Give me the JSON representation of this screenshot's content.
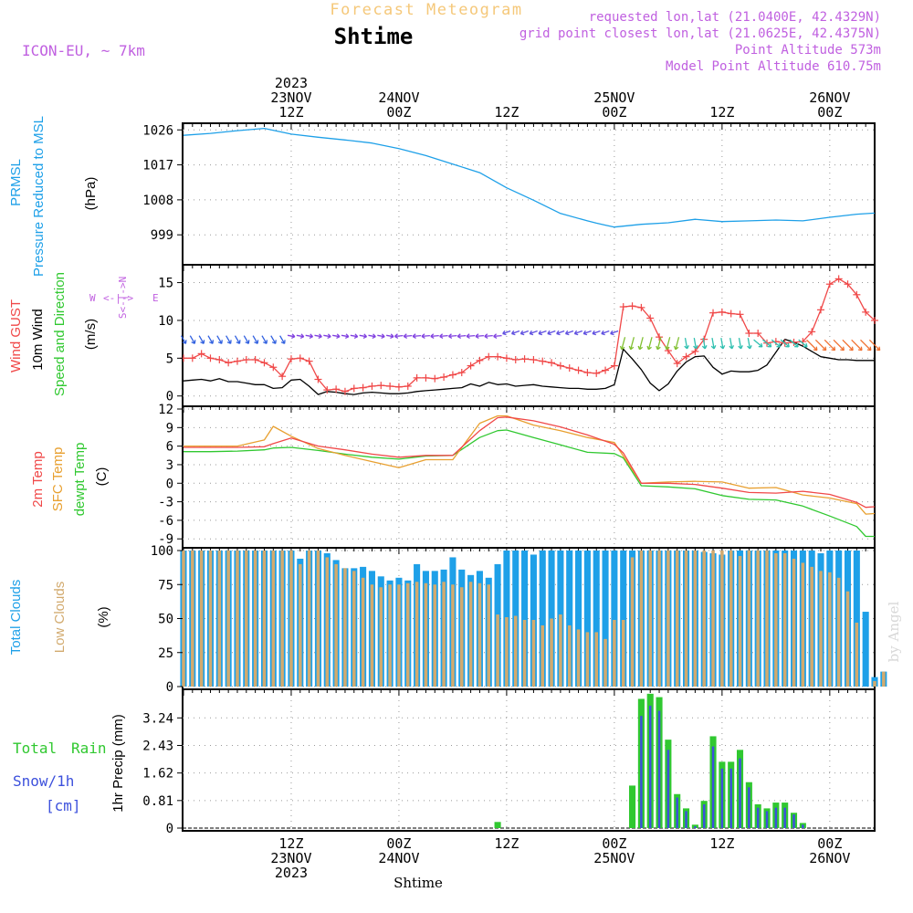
{
  "header": {
    "super_title": "Forecast Meteogram",
    "location": "Shtime",
    "model": "ICON-EU, ~ 7km",
    "requested": "requested lon,lat (21.0400E, 42.4329N)",
    "grid_point": "grid point closest lon,lat (21.0625E, 42.4375N)",
    "point_alt": "Point Altitude 573m",
    "model_alt": "Model Point Altitude 610.75m"
  },
  "time_axis": {
    "top_labels": [
      {
        "t": 12,
        "lines": [
          "2023",
          "23NOV",
          "12Z"
        ]
      },
      {
        "t": 24,
        "lines": [
          "24NOV",
          "00Z"
        ]
      },
      {
        "t": 36,
        "lines": [
          "12Z"
        ]
      },
      {
        "t": 48,
        "lines": [
          "25NOV",
          "00Z"
        ]
      },
      {
        "t": 60,
        "lines": [
          "12Z"
        ]
      },
      {
        "t": 72,
        "lines": [
          "26NOV",
          "00Z"
        ]
      }
    ],
    "bottom_labels": [
      {
        "t": 12,
        "lines": [
          "12Z",
          "23NOV",
          "2023"
        ]
      },
      {
        "t": 24,
        "lines": [
          "00Z",
          "24NOV"
        ]
      },
      {
        "t": 36,
        "lines": [
          "12Z"
        ]
      },
      {
        "t": 48,
        "lines": [
          "00Z",
          "25NOV"
        ]
      },
      {
        "t": 60,
        "lines": [
          "12Z"
        ]
      },
      {
        "t": 72,
        "lines": [
          "00Z",
          "26NOV"
        ]
      }
    ],
    "footer": "Shtime",
    "credit": "by Angel"
  },
  "panel_labels": {
    "p1": [
      "PRMSL",
      "Pressure Reduced to MSL",
      "(hPa)"
    ],
    "p2": [
      "Wind GUST",
      "10m Wind",
      "Speed and Direction",
      "(m/s)"
    ],
    "compass": {
      "n": "N",
      "s": "S",
      "w": "W",
      "e": "E",
      "arrows": "<-|->"
    },
    "p3": [
      "2m Temp",
      "SFC Temp",
      "dewpt Temp",
      "(C)"
    ],
    "p4": [
      "Total Clouds",
      "Low Clouds",
      "(%)"
    ],
    "p5": [
      "Total",
      "Rain",
      "Snow/1h",
      "[cm]",
      "1hr Precip (mm)"
    ]
  },
  "colors": {
    "pressure": "#1ea0e8",
    "gust": "#f04848",
    "wind": "#000000",
    "temp2m": "#f04848",
    "sfc": "#e8a030",
    "dewpt": "#30c830",
    "cloud_total": "#1ea0e8",
    "cloud_low": "#d2aa6e",
    "rain": "#30c830",
    "snow": "#3c50dc",
    "header": "#c060e0",
    "title_orange": "#f5c87a"
  },
  "chart_data": [
    {
      "type": "line",
      "title": "PRMSL",
      "ylabel": "(hPa)",
      "yticks": [
        999,
        1008,
        1017,
        1026
      ],
      "ylim": [
        992,
        1027
      ],
      "x": [
        0,
        3,
        6,
        9,
        12,
        15,
        18,
        21,
        24,
        27,
        30,
        33,
        36,
        39,
        42,
        45,
        46,
        47,
        48,
        51,
        54,
        57,
        60,
        63,
        66,
        69,
        72,
        75,
        77
      ],
      "series": [
        {
          "name": "PRMSL",
          "values": [
            1024.6,
            1025.1,
            1025.8,
            1026.4,
            1024.9,
            1024.1,
            1023.4,
            1022.6,
            1021.2,
            1019.4,
            1017.2,
            1015.0,
            1011.1,
            1007.9,
            1004.5,
            1002.6,
            1002.0,
            1001.5,
            1001.0,
            1001.7,
            1002.1,
            1003.0,
            1002.4,
            1002.6,
            1002.8,
            1002.6,
            1003.5,
            1004.3,
            1004.6
          ]
        }
      ]
    },
    {
      "type": "line",
      "title": "Wind",
      "ylabel": "(m/s)",
      "yticks": [
        0,
        5,
        10,
        15
      ],
      "ylim": [
        -1,
        17
      ],
      "x": [
        0,
        1,
        2,
        3,
        4,
        5,
        6,
        7,
        8,
        9,
        10,
        11,
        12,
        13,
        14,
        15,
        16,
        17,
        18,
        19,
        20,
        21,
        22,
        23,
        24,
        25,
        26,
        27,
        28,
        29,
        30,
        31,
        32,
        33,
        34,
        35,
        36,
        37,
        38,
        39,
        40,
        41,
        42,
        43,
        44,
        45,
        46,
        47,
        48,
        49,
        50,
        51,
        52,
        53,
        54,
        55,
        56,
        57,
        58,
        59,
        60,
        61,
        62,
        63,
        64,
        65,
        66,
        67,
        68,
        69,
        70,
        71,
        72,
        73,
        74,
        75,
        76,
        77
      ],
      "series": [
        {
          "name": "Wind GUST",
          "values": [
            5.0,
            5.0,
            5.6,
            5.0,
            4.8,
            4.4,
            4.6,
            4.8,
            4.8,
            4.4,
            3.8,
            2.6,
            4.9,
            5.0,
            4.6,
            2.2,
            0.8,
            0.9,
            0.6,
            1.0,
            1.1,
            1.3,
            1.4,
            1.3,
            1.2,
            1.3,
            2.4,
            2.4,
            2.3,
            2.5,
            2.8,
            3.1,
            4.0,
            4.7,
            5.2,
            5.2,
            5.0,
            4.8,
            4.9,
            4.8,
            4.6,
            4.4,
            4.0,
            3.7,
            3.4,
            3.1,
            3.0,
            3.4,
            4.0,
            11.8,
            11.9,
            11.7,
            10.3,
            7.8,
            6.0,
            4.3,
            5.2,
            5.9,
            7.5,
            11.0,
            11.1,
            10.9,
            10.8,
            8.3,
            8.3,
            7.0,
            7.2,
            7.0,
            7.1,
            7.2,
            8.5,
            11.4,
            14.8,
            15.5,
            14.8,
            13.4,
            11.1,
            10.0
          ]
        },
        {
          "name": "10m Wind",
          "values": [
            2.0,
            2.1,
            2.2,
            2.0,
            2.3,
            1.9,
            1.9,
            1.7,
            1.5,
            1.5,
            1.0,
            1.1,
            2.1,
            2.2,
            1.3,
            0.2,
            0.6,
            0.5,
            0.3,
            0.2,
            0.4,
            0.5,
            0.4,
            0.3,
            0.3,
            0.4,
            0.6,
            0.7,
            0.8,
            0.9,
            1.0,
            1.1,
            1.6,
            1.3,
            1.8,
            1.5,
            1.6,
            1.3,
            1.4,
            1.5,
            1.3,
            1.2,
            1.1,
            1.0,
            1.0,
            0.9,
            0.9,
            1.0,
            1.5,
            6.2,
            4.9,
            3.5,
            1.7,
            0.7,
            1.6,
            3.3,
            4.5,
            5.2,
            5.3,
            3.8,
            2.9,
            3.3,
            3.2,
            3.2,
            3.4,
            4.1,
            5.8,
            7.5,
            7.1,
            6.6,
            5.9,
            5.2,
            5.0,
            4.8,
            4.8,
            4.7,
            4.7,
            4.7
          ]
        }
      ]
    },
    {
      "type": "line",
      "title": "Temperature",
      "ylabel": "(C)",
      "yticks": [
        -9,
        -6,
        -3,
        0,
        3,
        6,
        9,
        12
      ],
      "ylim": [
        -10,
        12
      ],
      "x": [
        0,
        3,
        6,
        9,
        10,
        12,
        15,
        18,
        21,
        24,
        27,
        30,
        33,
        35,
        36,
        39,
        42,
        45,
        48,
        49,
        51,
        54,
        57,
        60,
        63,
        66,
        69,
        72,
        75,
        76,
        77
      ],
      "series": [
        {
          "name": "2m Temp",
          "values": [
            5.8,
            5.8,
            5.8,
            5.9,
            6.4,
            7.3,
            6.0,
            5.4,
            4.7,
            4.2,
            4.5,
            4.5,
            8.5,
            10.6,
            10.7,
            10.1,
            9.1,
            7.8,
            6.3,
            4.9,
            0.0,
            0.0,
            -0.2,
            -0.8,
            -1.5,
            -1.6,
            -1.3,
            -1.8,
            -3.1,
            -3.9,
            -3.8
          ]
        },
        {
          "name": "SFC Temp",
          "values": [
            6.0,
            6.0,
            6.0,
            7.0,
            9.2,
            7.6,
            5.6,
            4.5,
            3.5,
            2.5,
            3.8,
            3.8,
            9.7,
            10.9,
            10.9,
            9.4,
            8.5,
            7.4,
            6.6,
            4.4,
            0.0,
            0.2,
            0.3,
            0.2,
            -0.8,
            -0.7,
            -1.9,
            -2.4,
            -3.3,
            -5.0,
            -4.9
          ]
        },
        {
          "name": "dewpt Temp",
          "values": [
            5.1,
            5.1,
            5.2,
            5.4,
            5.7,
            5.8,
            5.3,
            4.7,
            4.2,
            3.9,
            4.4,
            4.5,
            7.4,
            8.5,
            8.6,
            7.4,
            6.2,
            5.0,
            4.8,
            4.1,
            -0.4,
            -0.6,
            -0.9,
            -2.0,
            -2.6,
            -2.7,
            -3.7,
            -5.3,
            -7.0,
            -8.6,
            -8.6
          ]
        }
      ]
    },
    {
      "type": "bar",
      "title": "Clouds",
      "ylabel": "(%)",
      "yticks": [
        0,
        25,
        50,
        75,
        100
      ],
      "ylim": [
        0,
        100
      ],
      "x_start": 0,
      "series": [
        {
          "name": "Total Clouds",
          "values": [
            100,
            100,
            100,
            100,
            100,
            100,
            100,
            100,
            100,
            100,
            100,
            100,
            100,
            94,
            100,
            100,
            98,
            93,
            87,
            87,
            88,
            85,
            81,
            78,
            80,
            78,
            90,
            85,
            85,
            86,
            95,
            86,
            82,
            85,
            80,
            90,
            100,
            100,
            100,
            97,
            100,
            100,
            100,
            100,
            100,
            100,
            100,
            100,
            100,
            100,
            100,
            100,
            100,
            100,
            100,
            100,
            100,
            100,
            99,
            98,
            97,
            100,
            100,
            100,
            100,
            100,
            100,
            100,
            100,
            100,
            100,
            98,
            100,
            100,
            100,
            100,
            55,
            7,
            11
          ]
        },
        {
          "name": "Low Clouds",
          "values": [
            100,
            100,
            100,
            100,
            100,
            100,
            100,
            100,
            100,
            100,
            100,
            100,
            100,
            90,
            100,
            100,
            95,
            90,
            87,
            85,
            80,
            75,
            73,
            75,
            75,
            76,
            77,
            76,
            75,
            77,
            75,
            73,
            77,
            76,
            75,
            53,
            51,
            52,
            49,
            49,
            45,
            50,
            53,
            45,
            42,
            40,
            40,
            35,
            49,
            49,
            95,
            100,
            100,
            100,
            100,
            100,
            100,
            100,
            100,
            100,
            100,
            100,
            96,
            100,
            100,
            100,
            98,
            98,
            94,
            91,
            88,
            85,
            84,
            80,
            70,
            47,
            0,
            4,
            11
          ]
        }
      ]
    },
    {
      "type": "bar",
      "title": "1hr Precip",
      "ylabel": "1hr Precip (mm)",
      "yticks": [
        0,
        0.81,
        1.62,
        2.43,
        3.24
      ],
      "ylim": [
        0,
        4
      ],
      "x_start": 0,
      "series": [
        {
          "name": "Total Rain",
          "values": [
            0,
            0,
            0,
            0,
            0,
            0,
            0,
            0,
            0,
            0,
            0,
            0,
            0,
            0,
            0,
            0,
            0,
            0,
            0,
            0,
            0,
            0,
            0,
            0,
            0,
            0,
            0,
            0,
            0,
            0,
            0,
            0,
            0,
            0,
            0,
            0.18,
            0,
            0,
            0,
            0,
            0,
            0,
            0,
            0,
            0,
            0,
            0,
            0,
            0,
            0,
            1.25,
            3.8,
            3.95,
            3.85,
            2.6,
            1.0,
            0.58,
            0.1,
            0.8,
            2.7,
            1.95,
            1.95,
            2.3,
            1.35,
            0.7,
            0.58,
            0.75,
            0.75,
            0.45,
            0.15,
            0,
            0,
            0,
            0,
            0,
            0,
            0,
            0,
            0
          ]
        },
        {
          "name": "Snow/1h",
          "values": [
            0,
            0,
            0,
            0,
            0,
            0,
            0,
            0,
            0,
            0,
            0,
            0,
            0,
            0,
            0,
            0,
            0,
            0,
            0,
            0,
            0,
            0,
            0,
            0,
            0,
            0,
            0,
            0,
            0,
            0,
            0,
            0,
            0,
            0,
            0,
            0,
            0,
            0,
            0,
            0,
            0,
            0,
            0,
            0,
            0,
            0,
            0,
            0,
            0,
            0,
            0,
            3.3,
            3.6,
            3.45,
            2.3,
            0.9,
            0.5,
            0.05,
            0.7,
            2.4,
            1.75,
            1.75,
            2.05,
            1.2,
            0.6,
            0.5,
            0.6,
            0.6,
            0.4,
            0.1,
            0,
            0,
            0,
            0,
            0,
            0,
            0,
            0,
            0
          ]
        }
      ]
    }
  ]
}
